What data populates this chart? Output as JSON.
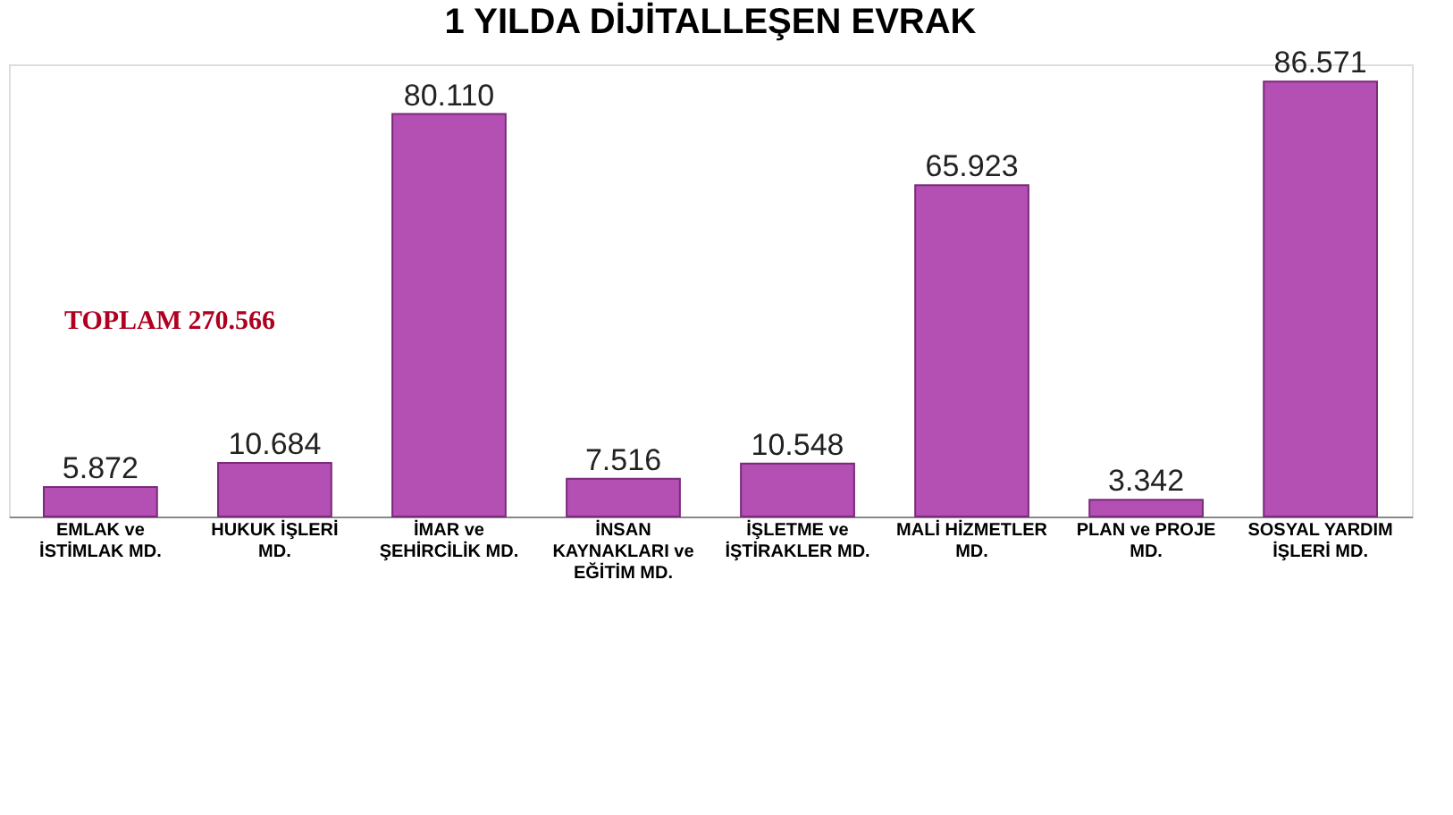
{
  "chart_data": {
    "type": "bar",
    "title": "1 YILDA DİJİTALLEŞEN EVRAK",
    "categories": [
      "EMLAK ve\nİSTİMLAK MD.",
      "HUKUK İŞLERİ\nMD.",
      "İMAR ve\nŞEHİRCİLİK MD.",
      "İNSAN\nKAYNAKLARI ve\nEĞİTİM MD.",
      "İŞLETME ve\nİŞTİRAKLER MD.",
      "MALİ HİZMETLER\nMD.",
      "PLAN ve PROJE\nMD.",
      "SOSYAL YARDIM\nİŞLERİ MD."
    ],
    "values": [
      5872,
      10684,
      80110,
      7516,
      10548,
      65923,
      3342,
      86571
    ],
    "value_labels": [
      "5.872",
      "10.684",
      "80.110",
      "7.516",
      "10.548",
      "65.923",
      "3.342",
      "86.571"
    ],
    "color": "#b44fb4",
    "annotations": [
      "TOPLAM 270.566"
    ],
    "grid": false
  }
}
